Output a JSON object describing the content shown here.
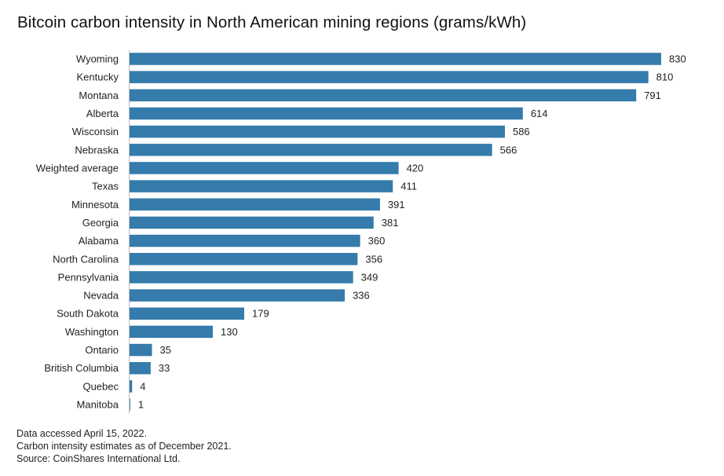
{
  "chart_data": {
    "type": "bar",
    "orientation": "horizontal",
    "title": "Bitcoin carbon intensity in North American mining regions (grams/kWh)",
    "categories": [
      "Wyoming",
      "Kentucky",
      "Montana",
      "Alberta",
      "Wisconsin",
      "Nebraska",
      "Weighted average",
      "Texas",
      "Minnesota",
      "Georgia",
      "Alabama",
      "North Carolina",
      "Pennsylvania",
      "Nevada",
      "South Dakota",
      "Washington",
      "Ontario",
      "British Columbia",
      "Quebec",
      "Manitoba"
    ],
    "values": [
      830,
      810,
      791,
      614,
      586,
      566,
      420,
      411,
      391,
      381,
      360,
      356,
      349,
      336,
      179,
      130,
      35,
      33,
      4,
      1
    ],
    "xlim": [
      0,
      830
    ],
    "grid": false,
    "bar_color": "#357bab",
    "axis_color": "#bbbbbb",
    "data_labels": true
  },
  "notes": [
    "Data accessed April 15, 2022.",
    "Carbon intensity estimates as of December 2021.",
    "Source: CoinShares International Ltd."
  ]
}
